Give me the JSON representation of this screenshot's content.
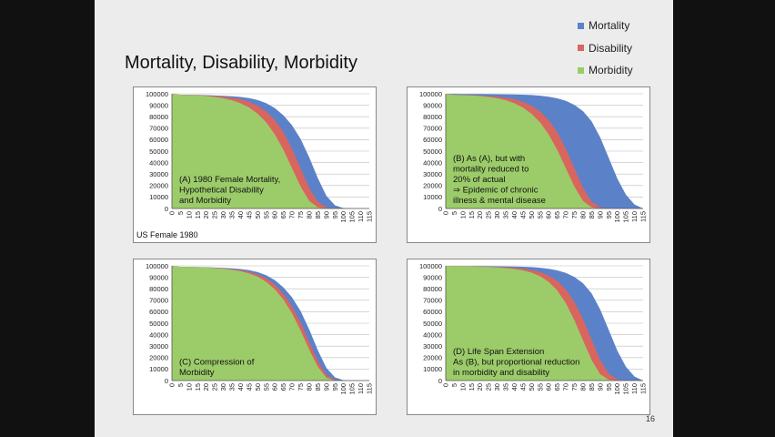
{
  "slide": {
    "title": "Mortality, Disability, Morbidity",
    "page_number": "16",
    "legend": [
      {
        "label": "Mortality",
        "color": "#5b82c8"
      },
      {
        "label": "Disability",
        "color": "#d9655f"
      },
      {
        "label": "Morbidity",
        "color": "#9ccc6a"
      }
    ],
    "colors": {
      "mortality": "#5b82c8",
      "disability": "#d9655f",
      "morbidity": "#9ccc6a"
    }
  },
  "chart_data": [
    {
      "type": "area",
      "annotation": [
        "(A) 1980 Female Mortality,",
        "Hypothetical Disability",
        "and Morbidity"
      ],
      "footnote": "US Female 1980",
      "x": [
        0,
        5,
        10,
        15,
        20,
        25,
        30,
        35,
        40,
        45,
        50,
        55,
        60,
        65,
        70,
        75,
        80,
        85,
        90,
        95,
        100,
        105,
        110,
        115
      ],
      "ylim": [
        0,
        100000
      ],
      "yticks": [
        0,
        10000,
        20000,
        30000,
        40000,
        50000,
        60000,
        70000,
        80000,
        90000,
        100000
      ],
      "grid": true,
      "series": [
        {
          "name": "Mortality",
          "values": [
            100000,
            99200,
            99100,
            99000,
            98800,
            98500,
            98200,
            97800,
            97200,
            96200,
            94500,
            91800,
            87500,
            81200,
            72500,
            60500,
            44500,
            26500,
            11000,
            2800,
            300,
            0,
            0,
            0
          ]
        },
        {
          "name": "Disability",
          "values": [
            100000,
            99100,
            99000,
            98800,
            98500,
            98000,
            97400,
            96500,
            95200,
            93000,
            89500,
            84500,
            77000,
            66500,
            52000,
            35000,
            18000,
            6000,
            900,
            0,
            0,
            0,
            0,
            0
          ]
        },
        {
          "name": "Morbidity",
          "values": [
            100000,
            99000,
            98800,
            98500,
            98000,
            97200,
            96000,
            94300,
            91800,
            88000,
            82500,
            75000,
            64500,
            51000,
            35000,
            19000,
            6500,
            1000,
            0,
            0,
            0,
            0,
            0,
            0
          ]
        }
      ]
    },
    {
      "type": "area",
      "annotation": [
        "(B) As (A), but with",
        "mortality reduced to",
        "20% of actual",
        "⇒ Epidemic of chronic",
        "illness & mental disease"
      ],
      "x": [
        0,
        5,
        10,
        15,
        20,
        25,
        30,
        35,
        40,
        45,
        50,
        55,
        60,
        65,
        70,
        75,
        80,
        85,
        90,
        95,
        100,
        105,
        110,
        115
      ],
      "ylim": [
        0,
        100000
      ],
      "yticks": [
        0,
        10000,
        20000,
        30000,
        40000,
        50000,
        60000,
        70000,
        80000,
        90000,
        100000
      ],
      "grid": true,
      "series": [
        {
          "name": "Mortality",
          "values": [
            100000,
            99900,
            99850,
            99800,
            99750,
            99700,
            99650,
            99550,
            99400,
            99200,
            98900,
            98300,
            97400,
            96000,
            93800,
            90300,
            84800,
            76000,
            62000,
            44000,
            26000,
            12000,
            3500,
            0
          ]
        },
        {
          "name": "Disability",
          "values": [
            100000,
            99100,
            99000,
            98800,
            98500,
            98000,
            97400,
            96500,
            95200,
            93000,
            89500,
            84500,
            77000,
            66500,
            52000,
            35000,
            18000,
            6000,
            900,
            0,
            0,
            0,
            0,
            0
          ]
        },
        {
          "name": "Morbidity",
          "values": [
            100000,
            99000,
            98800,
            98500,
            98000,
            97200,
            96000,
            94300,
            91800,
            88000,
            82500,
            75000,
            64500,
            51000,
            35000,
            19000,
            6500,
            1000,
            0,
            0,
            0,
            0,
            0,
            0
          ]
        }
      ]
    },
    {
      "type": "area",
      "annotation": [
        "(C) Compression of",
        "Morbidity"
      ],
      "x": [
        0,
        5,
        10,
        15,
        20,
        25,
        30,
        35,
        40,
        45,
        50,
        55,
        60,
        65,
        70,
        75,
        80,
        85,
        90,
        95,
        100,
        105,
        110,
        115
      ],
      "ylim": [
        0,
        100000
      ],
      "yticks": [
        0,
        10000,
        20000,
        30000,
        40000,
        50000,
        60000,
        70000,
        80000,
        90000,
        100000
      ],
      "grid": true,
      "series": [
        {
          "name": "Mortality",
          "values": [
            100000,
            99200,
            99100,
            99000,
            98800,
            98500,
            98200,
            97800,
            97200,
            96200,
            94500,
            91800,
            87500,
            81200,
            72500,
            60500,
            44500,
            26500,
            11000,
            2800,
            300,
            0,
            0,
            0
          ]
        },
        {
          "name": "Disability",
          "values": [
            100000,
            99150,
            99050,
            98900,
            98650,
            98250,
            97800,
            97100,
            96200,
            94800,
            92500,
            89000,
            83500,
            75500,
            64500,
            50500,
            33500,
            17000,
            5000,
            600,
            0,
            0,
            0,
            0
          ]
        },
        {
          "name": "Morbidity",
          "values": [
            100000,
            99100,
            99000,
            98800,
            98500,
            98000,
            97400,
            96500,
            95300,
            93400,
            90500,
            86000,
            79500,
            70500,
            58500,
            43500,
            27000,
            12000,
            2500,
            0,
            0,
            0,
            0,
            0
          ]
        }
      ]
    },
    {
      "type": "area",
      "annotation": [
        "(D) Life Span Extension",
        "As (B), but proportional reduction",
        "in morbidity and disability"
      ],
      "x": [
        0,
        5,
        10,
        15,
        20,
        25,
        30,
        35,
        40,
        45,
        50,
        55,
        60,
        65,
        70,
        75,
        80,
        85,
        90,
        95,
        100,
        105,
        110,
        115
      ],
      "ylim": [
        0,
        100000
      ],
      "yticks": [
        0,
        10000,
        20000,
        30000,
        40000,
        50000,
        60000,
        70000,
        80000,
        90000,
        100000
      ],
      "grid": true,
      "series": [
        {
          "name": "Mortality",
          "values": [
            100000,
            99900,
            99850,
            99800,
            99750,
            99700,
            99650,
            99550,
            99400,
            99200,
            98900,
            98300,
            97400,
            96000,
            93800,
            90300,
            84800,
            76000,
            62000,
            44000,
            26000,
            12000,
            3500,
            0
          ]
        },
        {
          "name": "Disability",
          "values": [
            100000,
            99800,
            99700,
            99600,
            99500,
            99300,
            99050,
            98700,
            98200,
            97500,
            96300,
            94500,
            91500,
            86800,
            79500,
            68500,
            53500,
            35500,
            18000,
            6000,
            1000,
            0,
            0,
            0
          ]
        },
        {
          "name": "Morbidity",
          "values": [
            100000,
            99700,
            99600,
            99450,
            99250,
            99000,
            98600,
            98000,
            97200,
            96000,
            94000,
            91000,
            86000,
            78500,
            67500,
            52500,
            35000,
            18000,
            5500,
            800,
            0,
            0,
            0,
            0
          ]
        }
      ]
    }
  ]
}
